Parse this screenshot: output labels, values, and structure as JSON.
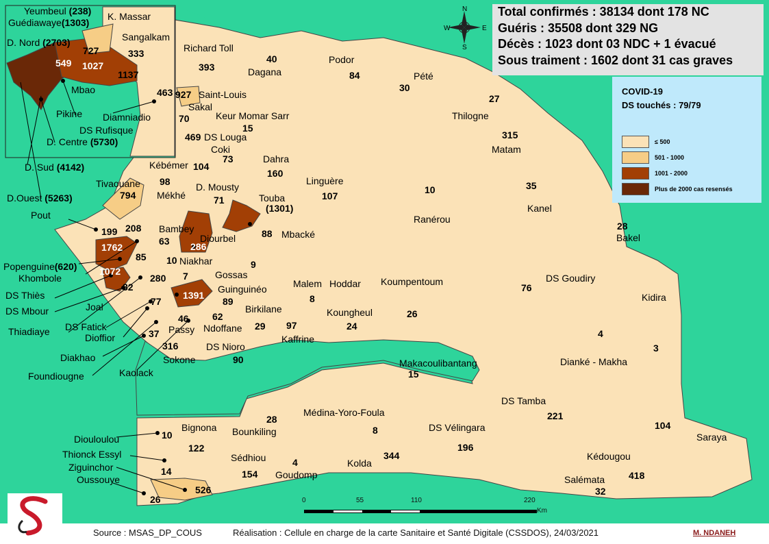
{
  "summary": {
    "confirmed": "Total confirmés : 38134 dont 178 NC",
    "recovered": "Guéris : 35508 dont 329 NG",
    "deaths": "Décès : 1023 dont 03 NDC + 1 évacué",
    "treatment": "Sous traiment : 1602 dont 31 cas graves"
  },
  "legend": {
    "title1": "COVID-19",
    "title2": "DS touchés : 79/79",
    "items": [
      {
        "label": "≤ 500",
        "color": "#fbe2b7"
      },
      {
        "label": "501 - 1000",
        "color": "#f6cd86"
      },
      {
        "label": "1001 - 2000",
        "color": "#a23f05"
      },
      {
        "label": "Plus de 2000 cas resensés",
        "color": "#6a2807"
      }
    ]
  },
  "colors": {
    "sea": "#2ed49b",
    "border": "#333333"
  },
  "compass": {
    "n": "N",
    "s": "S",
    "e": "E",
    "w": "W"
  },
  "scale": {
    "t0": "0",
    "t1": "55",
    "t2": "110",
    "t3": "220",
    "unit": "Km"
  },
  "footer": {
    "source": "Source : MSAS_DP_COUS",
    "realisation": "Réalisation : Cellule en charge de la carte Sanitaire et Santé Digitale (CSSDOS), 24/03/2021",
    "author": "M. NDANEH"
  },
  "labels": {
    "yeumbeul": "Yeumbeul",
    "yeumbeul_v": "(238)",
    "kmassar": "K. Massar",
    "guediawaye": "Guédiawaye",
    "guediawaye_v": "(1303)",
    "sangalkam": "Sangalkam",
    "sangalkam_v": "333",
    "dnord": "D. Nord",
    "dnord_v": "(2703)",
    "v727": "727",
    "v549": "549",
    "v1027": "1027",
    "v1137": "1137",
    "mbao": "Mbao",
    "pikine": "Pikine",
    "diamniadio": "Diamniadio",
    "v463": "463",
    "rufisque": "DS Rufisque",
    "dcentre": "D. Centre",
    "dcentre_v": "(5730)",
    "dsud": "D. Sud",
    "dsud_v": "(4142)",
    "douest": "D.Ouest",
    "douest_v": "(5263)",
    "richardtoll": "Richard Toll",
    "richardtoll_v": "393",
    "dagana": "Dagana",
    "dagana_v": "40",
    "podor": "Podor",
    "podor_v": "84",
    "pete": "Pété",
    "pete_v": "30",
    "stlouis": "Saint-Louis",
    "stlouis_v": "927",
    "sakal": "Sakal",
    "sakal_v": "70",
    "keurmomar": "Keur Momar Sarr",
    "keurmomar_v": "15",
    "thilogne": "Thilogne",
    "thilogne_v": "27",
    "matam": "Matam",
    "matam_v": "315",
    "dslouga": "DS Louga",
    "v469": "469",
    "coki": "Coki",
    "coki_v": "73",
    "dahra": "Dahra",
    "dahra_v": "160",
    "kebemer": "Kébémer",
    "kebemer_v": "104",
    "v98": "98",
    "linguere": "Linguère",
    "linguere_v": "107",
    "ranerou": "Ranérou",
    "ranerou_v": "10",
    "kanel": "Kanel",
    "kanel_v": "35",
    "dmousty": "D. Mousty",
    "dmousty_v": "71",
    "mekhe": "Mékhé",
    "tivaouane": "Tivaouane",
    "tivaouane_v": "794",
    "touba": "Touba",
    "touba_v": "(1301)",
    "pout": "Pout",
    "pout_v": "199",
    "v208": "208",
    "bambey": "Bambey",
    "bambey_v": "63",
    "v286": "286",
    "diourbel": "Diourbel",
    "mbacke": "Mbacké",
    "mbacke_v": "88",
    "bakel": "Bakel",
    "bakel_v": "28",
    "v1762": "1762",
    "v85": "85",
    "popenguine": "Popenguine",
    "popenguine_v": "(620)",
    "khombole": "Khombole",
    "niakhar": "Niakhar",
    "niakhar_v": "10",
    "gossas": "Gossas",
    "gossas_v": "9",
    "v1072": "1072",
    "v82": "82",
    "v280": "280",
    "v7": "7",
    "dsthies": "DS Thiès",
    "malem": "Malem",
    "hoddar": "Hoddar",
    "malem_v": "8",
    "koumpentoum": "Koumpentoum",
    "koumpentoum_v": "26",
    "dsgoudiry": "DS Goudiry",
    "dsgoudiry_v": "76",
    "kidira": "Kidira",
    "kidira_v": "3",
    "dsmbour": "DS Mbour",
    "joal": "Joal",
    "v77": "77",
    "v1391": "1391",
    "guinguineo": "Guinguinéo",
    "guinguineo_v": "89",
    "birkilane": "Birkilane",
    "birkilane_v": "29",
    "koungheul": "Koungheul",
    "koungheul_v": "24",
    "thiadiaye": "Thiadiaye",
    "dsfatick": "DS Fatick",
    "v46": "46",
    "v62": "62",
    "passy": "Passy",
    "ndoffane": "Ndoffane",
    "kaffrine": "Kaffrine",
    "kaffrine_v": "97",
    "dioffior": "Dioffior",
    "v37": "37",
    "diakhao": "Diakhao",
    "v316": "316",
    "sokone": "Sokone",
    "dsnioro": "DS Nioro",
    "dsnioro_v": "90",
    "diankemakha": "Dianké - Makha",
    "diankemakha_v": "4",
    "foundiougne": "Foundiougne",
    "kaolack": "Kaolack",
    "makacoulibantang": "Makacoulibantang",
    "makacoulibantang_v": "15",
    "dstamba": "DS Tamba",
    "dstamba_v": "221",
    "bignona": "Bignona",
    "bignona_v": "122",
    "bounkiling": "Bounkiling",
    "bounkiling_v": "28",
    "medina": "Médina-Yoro-Foula",
    "medina_v": "8",
    "dsvelingara": "DS Vélingara",
    "dsvelingara_v": "196",
    "saraya": "Saraya",
    "saraya_v": "104",
    "diouloulou": "Diouloulou",
    "diouloulou_v": "10",
    "thionck": "Thionck Essyl",
    "thionck_v": "14",
    "ziguinchor": "Ziguinchor",
    "ziguinchor_v": "526",
    "oussouye": "Oussouye",
    "oussouye_v": "26",
    "sedhiou": "Sédhiou",
    "sedhiou_v": "154",
    "goudomp": "Goudomp",
    "goudomp_v": "4",
    "kolda": "Kolda",
    "kolda_v": "344",
    "kedougou": "Kédougou",
    "kedougou_v": "418",
    "salemata": "Salémata",
    "salemata_v": "32"
  }
}
